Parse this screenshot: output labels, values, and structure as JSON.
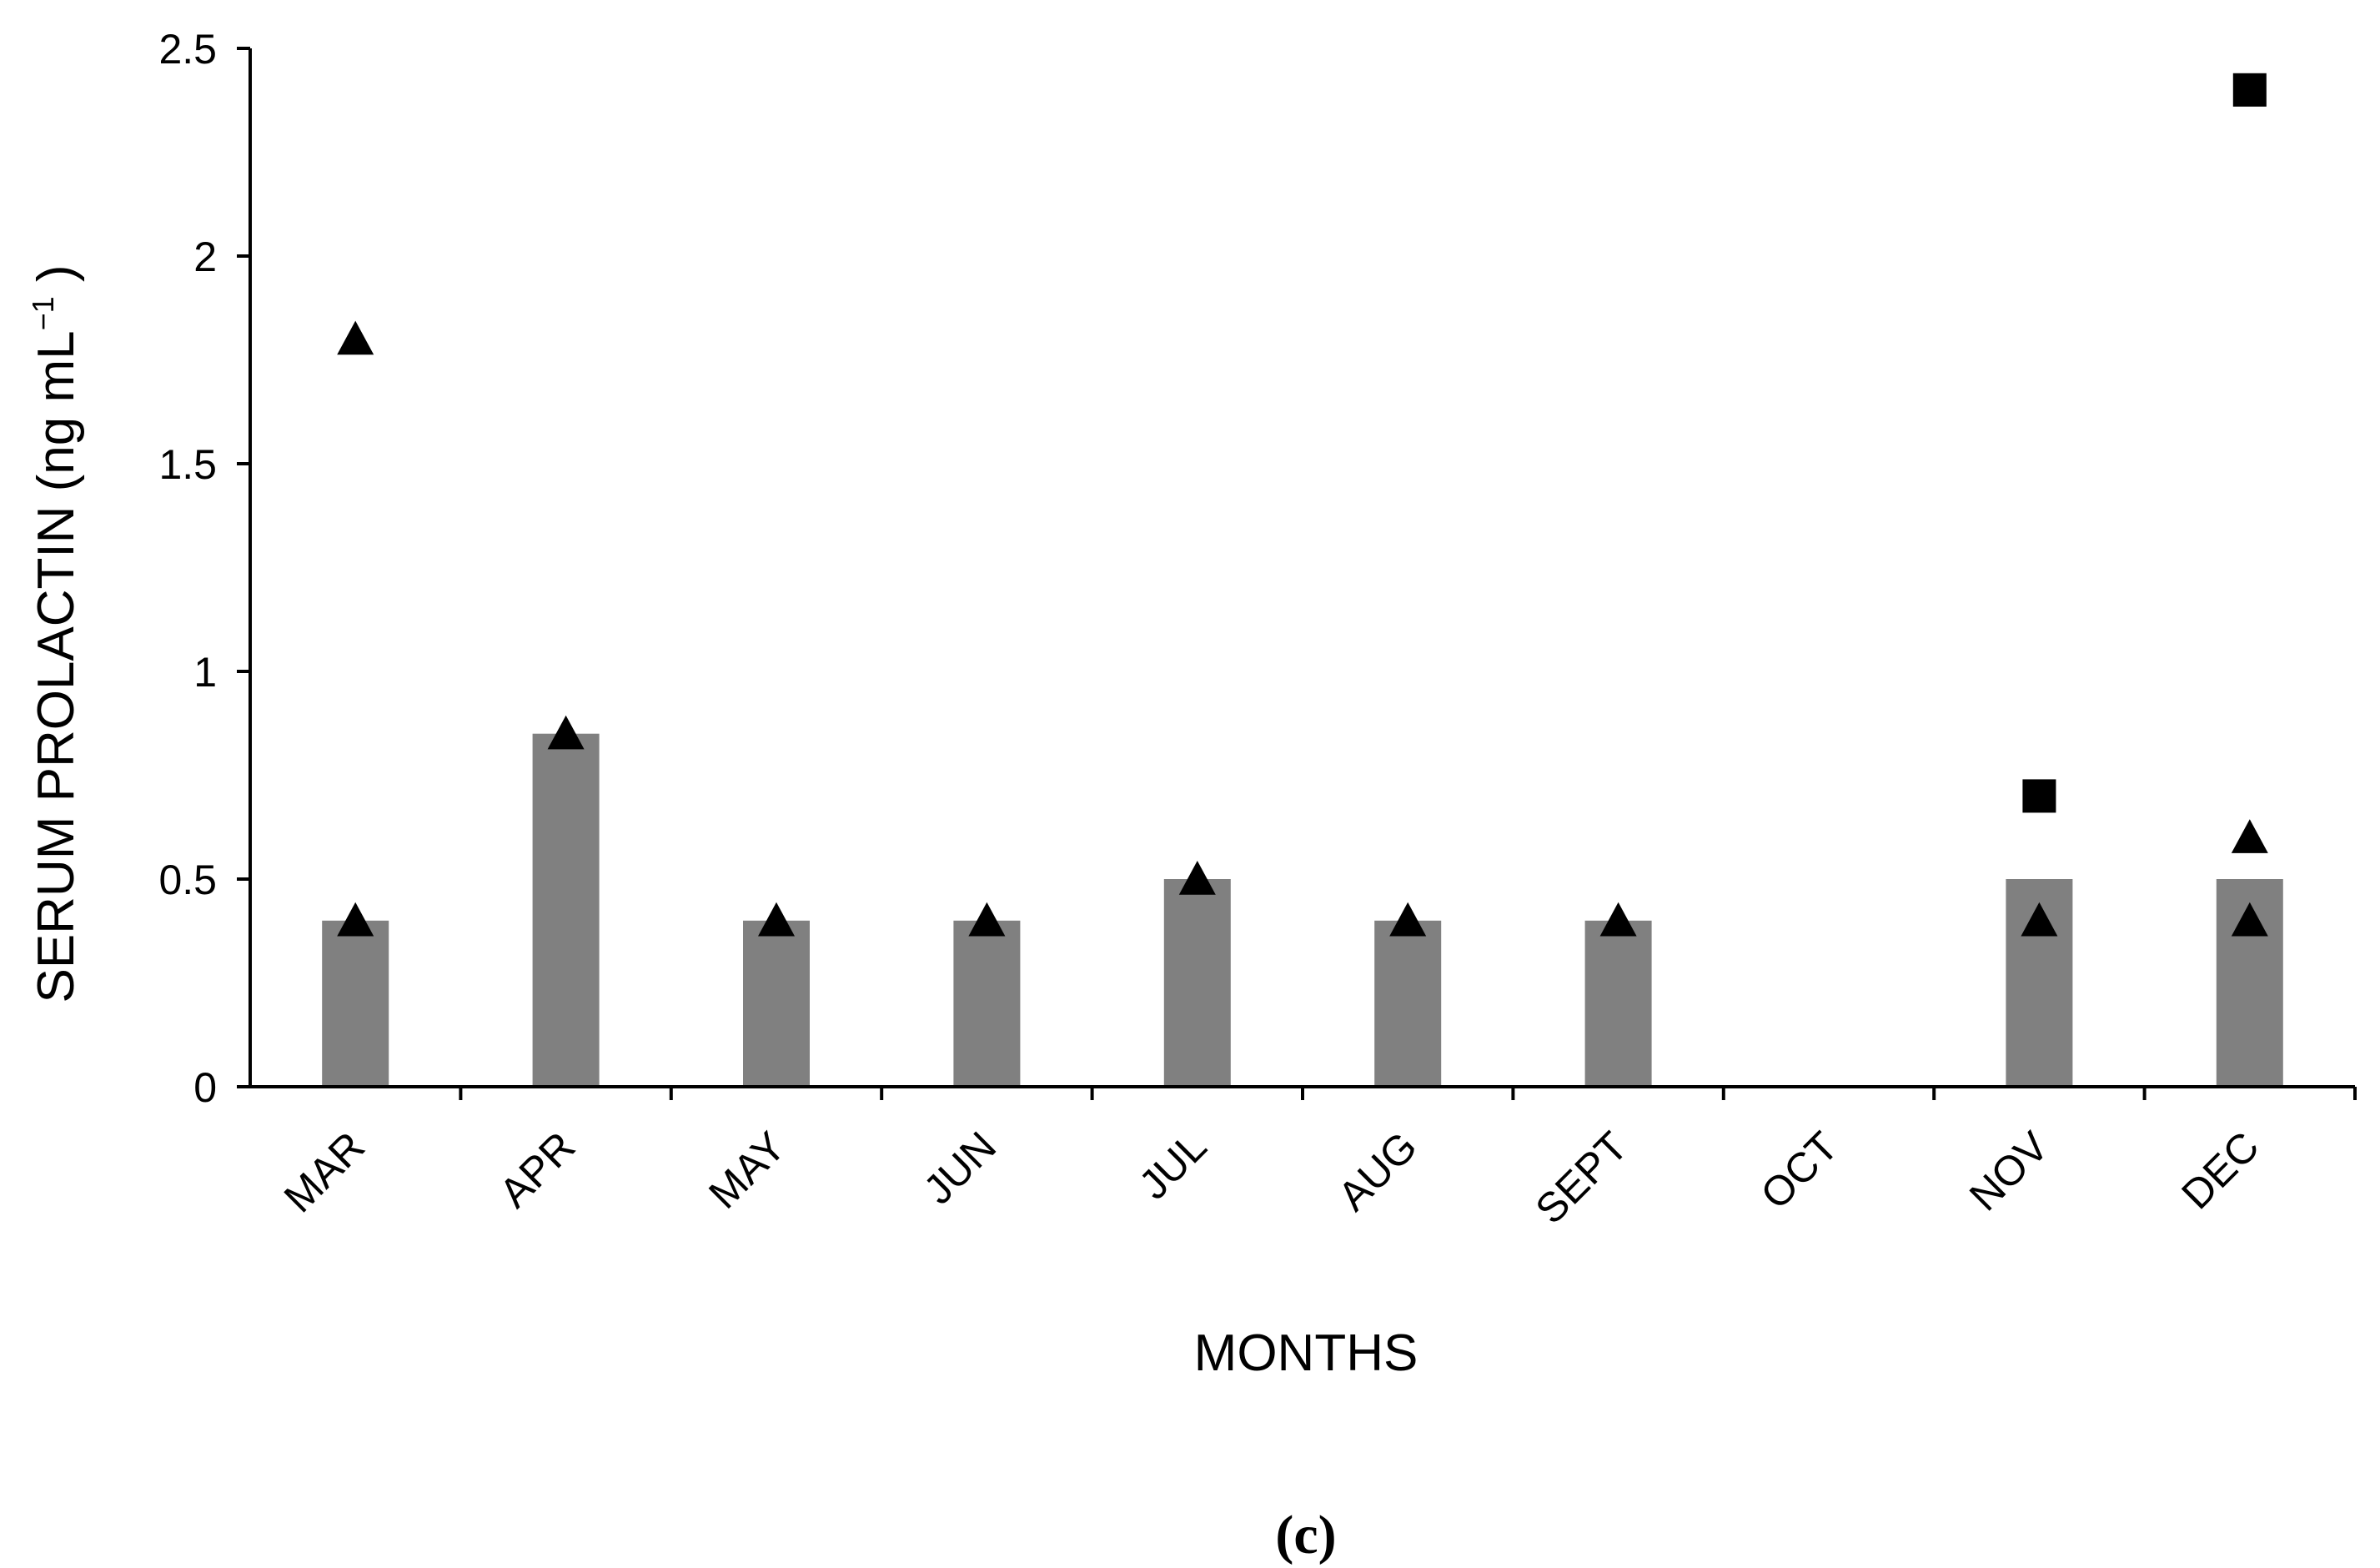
{
  "chart_data": {
    "type": "bar",
    "title": "",
    "xlabel": "MONTHS",
    "ylabel": {
      "main": "SERUM PROLACTIN (ng mL",
      "superscript": "−1",
      "close": " )"
    },
    "ylim": [
      0,
      2.5
    ],
    "yticks": [
      "0",
      "0.5",
      "1",
      "1.5",
      "2",
      "2.5"
    ],
    "ytick_values": [
      0,
      0.5,
      1,
      1.5,
      2,
      2.5
    ],
    "categories": [
      "MAR",
      "APR",
      "MAY",
      "JUN",
      "JUL",
      "AUG",
      "SEPT",
      "OCT",
      "NOV",
      "DEC"
    ],
    "bars": {
      "color": "#808080",
      "values": [
        0.4,
        0.85,
        0.4,
        0.4,
        0.5,
        0.4,
        0.4,
        null,
        0.5,
        0.5
      ]
    },
    "triangle_points": [
      {
        "category": "MAR",
        "y": 1.8
      },
      {
        "category": "MAR",
        "y": 0.4
      },
      {
        "category": "APR",
        "y": 0.85
      },
      {
        "category": "MAY",
        "y": 0.4
      },
      {
        "category": "JUN",
        "y": 0.4
      },
      {
        "category": "JUL",
        "y": 0.5
      },
      {
        "category": "AUG",
        "y": 0.4
      },
      {
        "category": "SEPT",
        "y": 0.4
      },
      {
        "category": "NOV",
        "y": 0.4
      },
      {
        "category": "DEC",
        "y": 0.6
      },
      {
        "category": "DEC",
        "y": 0.4
      }
    ],
    "square_points": [
      {
        "category": "NOV",
        "y": 0.7
      },
      {
        "category": "DEC",
        "y": 2.4
      }
    ],
    "marker_color": "#000000",
    "grid": false,
    "legend": "none"
  },
  "panel_label": "(c)"
}
